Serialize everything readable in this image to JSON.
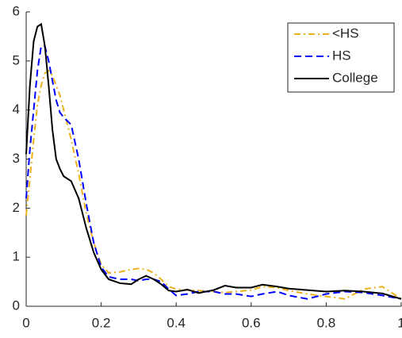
{
  "chart_data": {
    "type": "line",
    "x": [
      0,
      0.01,
      0.02,
      0.03,
      0.04,
      0.05,
      0.06,
      0.07,
      0.08,
      0.09,
      0.1,
      0.12,
      0.14,
      0.16,
      0.18,
      0.2,
      0.22,
      0.25,
      0.28,
      0.3,
      0.32,
      0.34,
      0.36,
      0.38,
      0.4,
      0.43,
      0.46,
      0.5,
      0.53,
      0.56,
      0.6,
      0.63,
      0.67,
      0.7,
      0.75,
      0.8,
      0.85,
      0.9,
      0.95,
      1
    ],
    "series": [
      {
        "name": "<HS",
        "color": "#edb120",
        "line_style": "dashdot",
        "values": [
          1.85,
          2.6,
          3.4,
          4.1,
          4.5,
          4.75,
          4.8,
          4.7,
          4.5,
          4.3,
          4.0,
          3.4,
          2.7,
          1.9,
          1.3,
          0.85,
          0.68,
          0.7,
          0.75,
          0.77,
          0.75,
          0.68,
          0.55,
          0.4,
          0.35,
          0.33,
          0.32,
          0.3,
          0.28,
          0.3,
          0.33,
          0.4,
          0.38,
          0.32,
          0.25,
          0.2,
          0.15,
          0.35,
          0.4,
          0.15
        ]
      },
      {
        "name": "HS",
        "color": "#0000ff",
        "line_style": "dashed",
        "values": [
          2.2,
          3.2,
          4.0,
          4.8,
          5.3,
          5.3,
          5.0,
          4.6,
          4.2,
          3.95,
          3.85,
          3.7,
          3.0,
          2.1,
          1.3,
          0.8,
          0.6,
          0.55,
          0.55,
          0.52,
          0.55,
          0.55,
          0.5,
          0.35,
          0.22,
          0.25,
          0.3,
          0.3,
          0.25,
          0.25,
          0.2,
          0.25,
          0.3,
          0.22,
          0.15,
          0.25,
          0.3,
          0.28,
          0.22,
          0.15
        ]
      },
      {
        "name": "College",
        "color": "#000000",
        "line_style": "solid",
        "values": [
          3.1,
          4.5,
          5.4,
          5.7,
          5.75,
          5.3,
          4.5,
          3.6,
          3.0,
          2.8,
          2.65,
          2.55,
          2.2,
          1.6,
          1.1,
          0.75,
          0.55,
          0.47,
          0.45,
          0.55,
          0.62,
          0.55,
          0.45,
          0.32,
          0.3,
          0.34,
          0.27,
          0.33,
          0.42,
          0.38,
          0.38,
          0.44,
          0.4,
          0.36,
          0.33,
          0.3,
          0.32,
          0.3,
          0.26,
          0.15
        ]
      }
    ],
    "xlim": [
      0,
      1
    ],
    "xticks": [
      0,
      0.2,
      0.4,
      0.6,
      0.8,
      1
    ],
    "ylim": [
      0,
      6
    ],
    "yticks": [
      0,
      1,
      2,
      3,
      4,
      5,
      6
    ],
    "legend": "upper right"
  }
}
